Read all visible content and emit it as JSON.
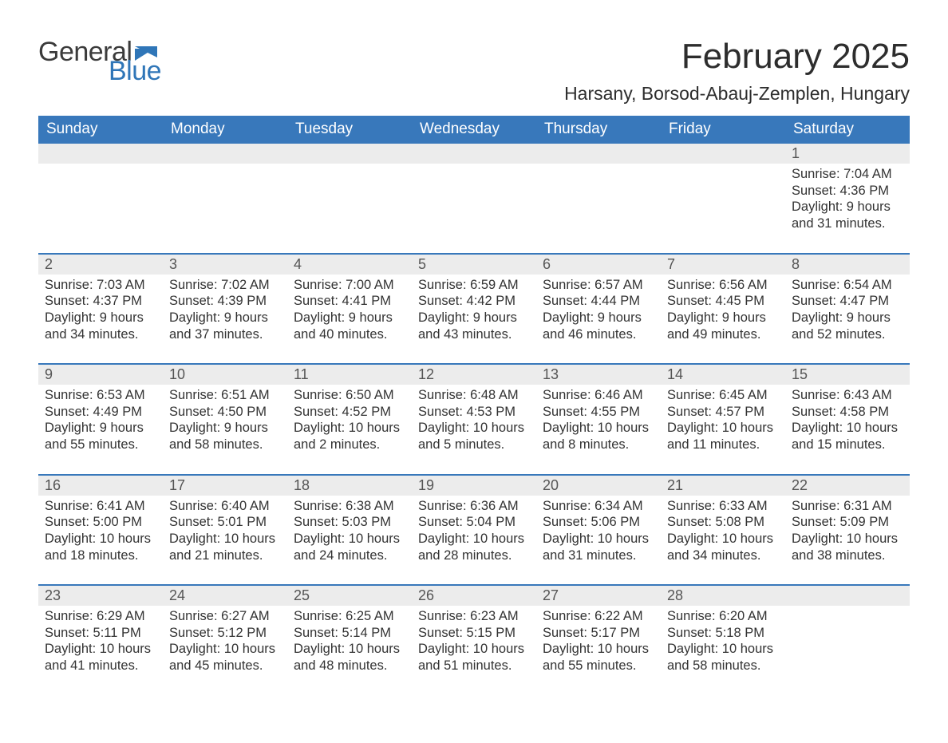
{
  "brand": {
    "word1": "General",
    "word2": "Blue",
    "accent_color": "#2f76b8",
    "text_color": "#3b3b3b"
  },
  "title": "February 2025",
  "location": "Harsany, Borsod-Abauj-Zemplen, Hungary",
  "colors": {
    "header_bg": "#3878bb",
    "header_text": "#ffffff",
    "daynum_bg": "#ececec",
    "daynum_text": "#555555",
    "body_text": "#333333",
    "week_divider": "#3878bb",
    "page_bg": "#ffffff"
  },
  "typography": {
    "title_fontsize": 44,
    "location_fontsize": 23,
    "header_fontsize": 19,
    "daynum_fontsize": 18,
    "body_fontsize": 16.5
  },
  "layout": {
    "columns": 7,
    "rows": 5
  },
  "day_headers": [
    "Sunday",
    "Monday",
    "Tuesday",
    "Wednesday",
    "Thursday",
    "Friday",
    "Saturday"
  ],
  "weeks": [
    [
      {
        "num": "",
        "lines": [
          "",
          "",
          "",
          ""
        ]
      },
      {
        "num": "",
        "lines": [
          "",
          "",
          "",
          ""
        ]
      },
      {
        "num": "",
        "lines": [
          "",
          "",
          "",
          ""
        ]
      },
      {
        "num": "",
        "lines": [
          "",
          "",
          "",
          ""
        ]
      },
      {
        "num": "",
        "lines": [
          "",
          "",
          "",
          ""
        ]
      },
      {
        "num": "",
        "lines": [
          "",
          "",
          "",
          ""
        ]
      },
      {
        "num": "1",
        "lines": [
          "Sunrise: 7:04 AM",
          "Sunset: 4:36 PM",
          "Daylight: 9 hours",
          "and 31 minutes."
        ]
      }
    ],
    [
      {
        "num": "2",
        "lines": [
          "Sunrise: 7:03 AM",
          "Sunset: 4:37 PM",
          "Daylight: 9 hours",
          "and 34 minutes."
        ]
      },
      {
        "num": "3",
        "lines": [
          "Sunrise: 7:02 AM",
          "Sunset: 4:39 PM",
          "Daylight: 9 hours",
          "and 37 minutes."
        ]
      },
      {
        "num": "4",
        "lines": [
          "Sunrise: 7:00 AM",
          "Sunset: 4:41 PM",
          "Daylight: 9 hours",
          "and 40 minutes."
        ]
      },
      {
        "num": "5",
        "lines": [
          "Sunrise: 6:59 AM",
          "Sunset: 4:42 PM",
          "Daylight: 9 hours",
          "and 43 minutes."
        ]
      },
      {
        "num": "6",
        "lines": [
          "Sunrise: 6:57 AM",
          "Sunset: 4:44 PM",
          "Daylight: 9 hours",
          "and 46 minutes."
        ]
      },
      {
        "num": "7",
        "lines": [
          "Sunrise: 6:56 AM",
          "Sunset: 4:45 PM",
          "Daylight: 9 hours",
          "and 49 minutes."
        ]
      },
      {
        "num": "8",
        "lines": [
          "Sunrise: 6:54 AM",
          "Sunset: 4:47 PM",
          "Daylight: 9 hours",
          "and 52 minutes."
        ]
      }
    ],
    [
      {
        "num": "9",
        "lines": [
          "Sunrise: 6:53 AM",
          "Sunset: 4:49 PM",
          "Daylight: 9 hours",
          "and 55 minutes."
        ]
      },
      {
        "num": "10",
        "lines": [
          "Sunrise: 6:51 AM",
          "Sunset: 4:50 PM",
          "Daylight: 9 hours",
          "and 58 minutes."
        ]
      },
      {
        "num": "11",
        "lines": [
          "Sunrise: 6:50 AM",
          "Sunset: 4:52 PM",
          "Daylight: 10 hours",
          "and 2 minutes."
        ]
      },
      {
        "num": "12",
        "lines": [
          "Sunrise: 6:48 AM",
          "Sunset: 4:53 PM",
          "Daylight: 10 hours",
          "and 5 minutes."
        ]
      },
      {
        "num": "13",
        "lines": [
          "Sunrise: 6:46 AM",
          "Sunset: 4:55 PM",
          "Daylight: 10 hours",
          "and 8 minutes."
        ]
      },
      {
        "num": "14",
        "lines": [
          "Sunrise: 6:45 AM",
          "Sunset: 4:57 PM",
          "Daylight: 10 hours",
          "and 11 minutes."
        ]
      },
      {
        "num": "15",
        "lines": [
          "Sunrise: 6:43 AM",
          "Sunset: 4:58 PM",
          "Daylight: 10 hours",
          "and 15 minutes."
        ]
      }
    ],
    [
      {
        "num": "16",
        "lines": [
          "Sunrise: 6:41 AM",
          "Sunset: 5:00 PM",
          "Daylight: 10 hours",
          "and 18 minutes."
        ]
      },
      {
        "num": "17",
        "lines": [
          "Sunrise: 6:40 AM",
          "Sunset: 5:01 PM",
          "Daylight: 10 hours",
          "and 21 minutes."
        ]
      },
      {
        "num": "18",
        "lines": [
          "Sunrise: 6:38 AM",
          "Sunset: 5:03 PM",
          "Daylight: 10 hours",
          "and 24 minutes."
        ]
      },
      {
        "num": "19",
        "lines": [
          "Sunrise: 6:36 AM",
          "Sunset: 5:04 PM",
          "Daylight: 10 hours",
          "and 28 minutes."
        ]
      },
      {
        "num": "20",
        "lines": [
          "Sunrise: 6:34 AM",
          "Sunset: 5:06 PM",
          "Daylight: 10 hours",
          "and 31 minutes."
        ]
      },
      {
        "num": "21",
        "lines": [
          "Sunrise: 6:33 AM",
          "Sunset: 5:08 PM",
          "Daylight: 10 hours",
          "and 34 minutes."
        ]
      },
      {
        "num": "22",
        "lines": [
          "Sunrise: 6:31 AM",
          "Sunset: 5:09 PM",
          "Daylight: 10 hours",
          "and 38 minutes."
        ]
      }
    ],
    [
      {
        "num": "23",
        "lines": [
          "Sunrise: 6:29 AM",
          "Sunset: 5:11 PM",
          "Daylight: 10 hours",
          "and 41 minutes."
        ]
      },
      {
        "num": "24",
        "lines": [
          "Sunrise: 6:27 AM",
          "Sunset: 5:12 PM",
          "Daylight: 10 hours",
          "and 45 minutes."
        ]
      },
      {
        "num": "25",
        "lines": [
          "Sunrise: 6:25 AM",
          "Sunset: 5:14 PM",
          "Daylight: 10 hours",
          "and 48 minutes."
        ]
      },
      {
        "num": "26",
        "lines": [
          "Sunrise: 6:23 AM",
          "Sunset: 5:15 PM",
          "Daylight: 10 hours",
          "and 51 minutes."
        ]
      },
      {
        "num": "27",
        "lines": [
          "Sunrise: 6:22 AM",
          "Sunset: 5:17 PM",
          "Daylight: 10 hours",
          "and 55 minutes."
        ]
      },
      {
        "num": "28",
        "lines": [
          "Sunrise: 6:20 AM",
          "Sunset: 5:18 PM",
          "Daylight: 10 hours",
          "and 58 minutes."
        ]
      },
      {
        "num": "",
        "lines": [
          "",
          "",
          "",
          ""
        ]
      }
    ]
  ]
}
